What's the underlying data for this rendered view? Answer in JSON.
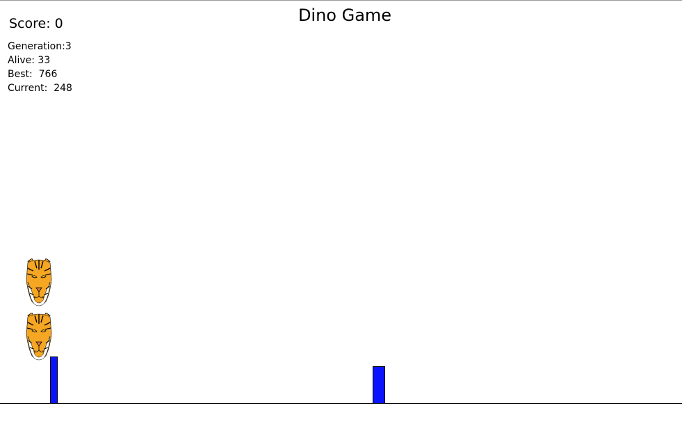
{
  "game": {
    "title": "Dino Game",
    "score_label": "Score",
    "score_sep": ": ",
    "score_value": "0",
    "stats": {
      "generation_label": "Generation:",
      "generation_value": "3",
      "alive_label": "Alive: ",
      "alive_value": "33",
      "best_label": "Best:  ",
      "best_value": "766",
      "current_label": "Current:  ",
      "current_value": "248"
    },
    "players": [
      {
        "sprite": "tiger-face-icon"
      },
      {
        "sprite": "tiger-face-icon"
      }
    ],
    "obstacles": [
      {
        "sprite": "cactus-bar"
      },
      {
        "sprite": "cactus-bar"
      }
    ],
    "colors": {
      "obstacle": "#0a14ff",
      "tiger_orange": "#f5a623",
      "ground": "#000000"
    }
  }
}
